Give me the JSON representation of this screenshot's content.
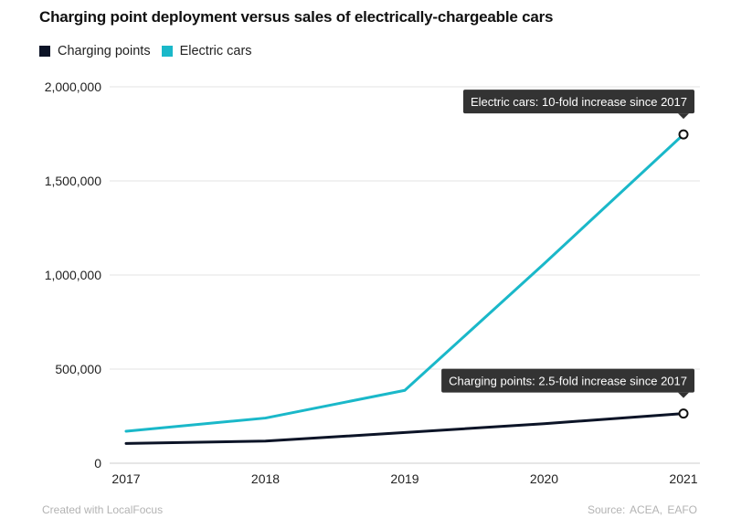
{
  "chart_data": {
    "type": "line",
    "title": "Charging point deployment versus sales of electrically-chargeable cars",
    "categories": [
      "2017",
      "2018",
      "2019",
      "2020",
      "2021"
    ],
    "series": [
      {
        "name": "Charging points",
        "color": "#0c1427",
        "values": [
          105000,
          118000,
          163000,
          210000,
          264000
        ]
      },
      {
        "name": "Electric cars",
        "color": "#1ab8c9",
        "values": [
          170000,
          240000,
          387000,
          1060000,
          1747000
        ]
      }
    ],
    "ylim": [
      0,
      2000000
    ],
    "yticks": [
      0,
      500000,
      1000000,
      1500000,
      2000000
    ],
    "ytick_labels": [
      "0",
      "500,000",
      "1,000,000",
      "1,500,000",
      "2,000,000"
    ],
    "grid": true,
    "legend": "top-left",
    "annotations": [
      {
        "text": "Electric cars: 10-fold increase since 2017",
        "series": 1,
        "index": 4
      },
      {
        "text": "Charging points: 2.5-fold increase since 2017",
        "series": 0,
        "index": 4
      }
    ]
  },
  "footer": {
    "credit": "Created with LocalFocus",
    "source": "Source:  ACEA, EAFO"
  }
}
